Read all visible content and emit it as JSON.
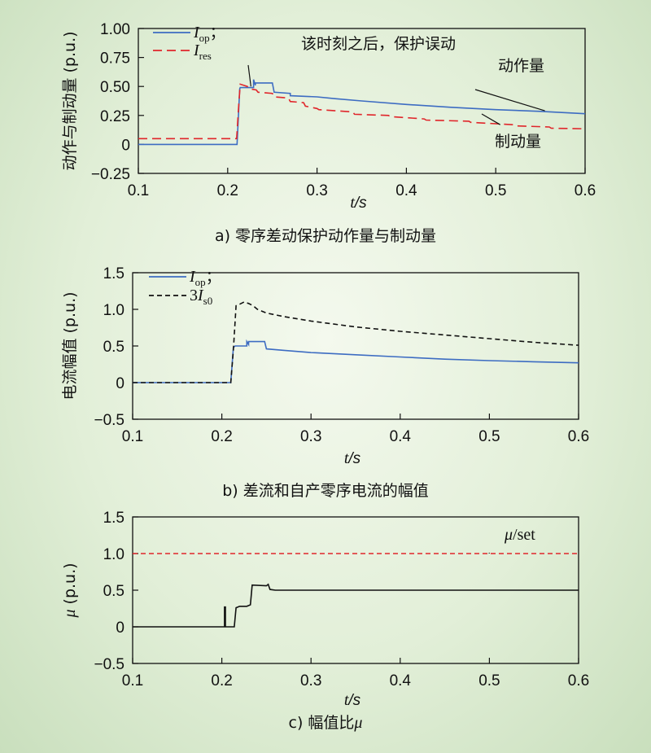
{
  "chart_data": [
    {
      "type": "line",
      "caption": "a) 零序差动保护动作量与制动量",
      "ylabel": "动作与制动量 (p.u.)",
      "xlabel_var": "t",
      "xlabel_unit": "/s",
      "xlim": [
        0.1,
        0.6
      ],
      "ylim": [
        -0.25,
        1.0
      ],
      "xticks": [
        "0.1",
        "0.2",
        "0.3",
        "0.4",
        "0.5",
        "0.6"
      ],
      "yticks": [
        "−0.25",
        "0",
        "0.25",
        "0.50",
        "0.75",
        "1.00"
      ],
      "ytick_values": [
        -0.25,
        0,
        0.25,
        0.5,
        0.75,
        1.0
      ],
      "legend": [
        {
          "main": "I",
          "sub": "op",
          "suffix": "；",
          "color": "#3d6cc2",
          "dash": ""
        },
        {
          "main": "I",
          "sub": "res",
          "suffix": "",
          "color": "#e0262b",
          "dash": "11,6"
        }
      ],
      "annotations": [
        {
          "text": "该时刻之后，保护误动",
          "target": [
            0.226,
            0.5
          ]
        },
        {
          "text": "动作量",
          "target": [
            0.555,
            0.29
          ]
        },
        {
          "text": "制动量",
          "target": [
            0.505,
            0.17
          ]
        }
      ],
      "series": [
        {
          "name": "I_op",
          "color": "#3d6cc2",
          "dash": "",
          "x": [
            0.1,
            0.2105,
            0.2135,
            0.214,
            0.229,
            0.229,
            0.231,
            0.231,
            0.25,
            0.252,
            0.27,
            0.27,
            0.3,
            0.32,
            0.35,
            0.4,
            0.45,
            0.5,
            0.55,
            0.6
          ],
          "y": [
            0.0,
            0.0,
            0.48,
            0.49,
            0.49,
            0.56,
            0.51,
            0.53,
            0.53,
            0.45,
            0.44,
            0.42,
            0.41,
            0.395,
            0.375,
            0.345,
            0.32,
            0.3,
            0.285,
            0.265
          ]
        },
        {
          "name": "I_res",
          "color": "#e0262b",
          "dash": "11,6",
          "x": [
            0.1,
            0.21,
            0.212,
            0.214,
            0.222,
            0.224,
            0.232,
            0.234,
            0.25,
            0.252,
            0.268,
            0.27,
            0.285,
            0.287,
            0.3,
            0.302,
            0.34,
            0.342,
            0.38,
            0.382,
            0.42,
            0.422,
            0.47,
            0.472,
            0.52,
            0.522,
            0.56,
            0.562,
            0.6
          ],
          "y": [
            0.05,
            0.05,
            0.3,
            0.52,
            0.5,
            0.48,
            0.47,
            0.45,
            0.44,
            0.41,
            0.4,
            0.37,
            0.36,
            0.33,
            0.31,
            0.3,
            0.28,
            0.26,
            0.25,
            0.24,
            0.22,
            0.21,
            0.2,
            0.19,
            0.17,
            0.16,
            0.15,
            0.14,
            0.135
          ]
        }
      ]
    },
    {
      "type": "line",
      "caption": "b) 差流和自产零序电流的幅值",
      "ylabel": "电流幅值 (p.u.)",
      "xlabel_var": "t",
      "xlabel_unit": "/s",
      "xlim": [
        0.1,
        0.6
      ],
      "ylim": [
        -0.5,
        1.5
      ],
      "xticks": [
        "0.1",
        "0.2",
        "0.3",
        "0.4",
        "0.5",
        "0.6"
      ],
      "yticks": [
        "−0.5",
        "0",
        "0.5",
        "1.0",
        "1.5"
      ],
      "ytick_values": [
        -0.5,
        0,
        0.5,
        1.0,
        1.5
      ],
      "legend": [
        {
          "main": "I",
          "sub": "op",
          "suffix": "；",
          "prefix": "",
          "color": "#3d6cc2",
          "dash": ""
        },
        {
          "main": "I",
          "sub": "s0",
          "suffix": "",
          "prefix": "3",
          "color": "#111111",
          "dash": "6,4"
        }
      ],
      "annotations": [],
      "series": [
        {
          "name": "I_op",
          "color": "#3d6cc2",
          "dash": "",
          "x": [
            0.1,
            0.21,
            0.213,
            0.215,
            0.228,
            0.228,
            0.23,
            0.23,
            0.248,
            0.25,
            0.27,
            0.3,
            0.35,
            0.4,
            0.45,
            0.5,
            0.55,
            0.6
          ],
          "y": [
            0.0,
            0.0,
            0.48,
            0.5,
            0.5,
            0.56,
            0.52,
            0.56,
            0.56,
            0.46,
            0.44,
            0.41,
            0.38,
            0.35,
            0.32,
            0.3,
            0.285,
            0.27
          ]
        },
        {
          "name": "3I_s0",
          "color": "#111111",
          "dash": "6,4",
          "x": [
            0.1,
            0.21,
            0.213,
            0.216,
            0.22,
            0.225,
            0.23,
            0.235,
            0.24,
            0.25,
            0.27,
            0.3,
            0.35,
            0.4,
            0.45,
            0.5,
            0.55,
            0.6
          ],
          "y": [
            0.0,
            0.0,
            0.45,
            1.05,
            1.07,
            1.1,
            1.08,
            1.05,
            1.0,
            0.95,
            0.9,
            0.84,
            0.76,
            0.7,
            0.65,
            0.6,
            0.55,
            0.51
          ]
        }
      ]
    },
    {
      "type": "line",
      "caption": "c) 幅值比",
      "caption_var": "μ",
      "ylabel_var": "μ",
      "ylabel": " (p.u.)",
      "xlabel_var": "t",
      "xlabel_unit": "/s",
      "xlim": [
        0.1,
        0.6
      ],
      "ylim": [
        -0.5,
        1.5
      ],
      "xticks": [
        "0.1",
        "0.2",
        "0.3",
        "0.4",
        "0.5",
        "0.6"
      ],
      "yticks": [
        "−0.5",
        "0",
        "0.5",
        "1.0",
        "1.5"
      ],
      "ytick_values": [
        -0.5,
        0,
        0.5,
        1.0,
        1.5
      ],
      "legend": [],
      "annotations": [
        {
          "text_var": "μ",
          "text": "/set",
          "target": [
            0.5,
            1.0
          ]
        }
      ],
      "series": [
        {
          "name": "μ",
          "color": "#111111",
          "dash": "",
          "x": [
            0.1,
            0.203,
            0.203,
            0.204,
            0.204,
            0.214,
            0.216,
            0.22,
            0.228,
            0.232,
            0.234,
            0.25,
            0.252,
            0.254,
            0.26,
            0.3,
            0.35,
            0.4,
            0.45,
            0.5,
            0.55,
            0.6
          ],
          "y": [
            0.0,
            0.0,
            0.27,
            0.27,
            0.0,
            0.0,
            0.26,
            0.28,
            0.28,
            0.3,
            0.57,
            0.56,
            0.58,
            0.51,
            0.5,
            0.5,
            0.5,
            0.5,
            0.5,
            0.5,
            0.5,
            0.5
          ]
        },
        {
          "name": "μ/set",
          "color": "#e0262b",
          "dash": "6,4",
          "x": [
            0.1,
            0.6
          ],
          "y": [
            1.0,
            1.0
          ]
        }
      ]
    }
  ]
}
